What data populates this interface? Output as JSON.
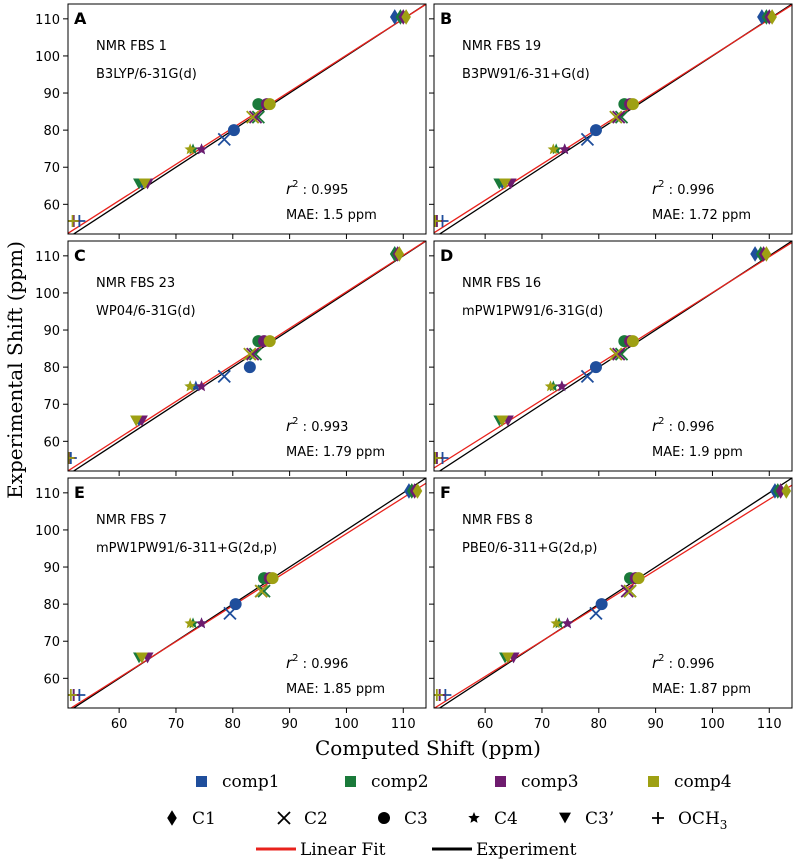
{
  "chart_data": {
    "type": "scatter",
    "xlabel": "Computed Shift (ppm)",
    "ylabel": "Experimental Shift (ppm)",
    "xlim": [
      51,
      114
    ],
    "ylim": [
      52,
      114
    ],
    "xticks": [
      60,
      70,
      80,
      90,
      100,
      110
    ],
    "yticks": [
      60,
      70,
      80,
      90,
      100,
      110
    ],
    "r2_label": "r",
    "mae_label": "MAE:",
    "unit": "ppm",
    "colors": {
      "comp1": "#1f4e9c",
      "comp2": "#1a7a3a",
      "comp3": "#6e1b6e",
      "comp4": "#9ea013",
      "fit": "#e8221c",
      "experiment": "#000000",
      "r2": "#e8221c",
      "mae": "#1f1fd0"
    },
    "panels": [
      {
        "letter": "A",
        "method": "NMR FBS 1",
        "basis": "B3LYP/6-31G(d)",
        "r2": "0.995",
        "mae": "1.5",
        "fit": {
          "slope": 0.98,
          "intercept": 2.2
        },
        "shifts": [
          {
            "comp": "comp1",
            "C1": 108.5,
            "C2": 78.5,
            "C3": 80.2,
            "C4": 74.5,
            "C3p": 64.0,
            "OCH3": 53.0
          },
          {
            "comp": "comp2",
            "C1": 109.5,
            "C2": 84.5,
            "C3": 84.5,
            "C4": 73.0,
            "C3p": 63.5,
            "OCH3": 52.0
          },
          {
            "comp": "comp3",
            "C1": 110.0,
            "C2": 84.0,
            "C3": 86.0,
            "C4": 74.5,
            "C3p": 65.0,
            "OCH3": 52.0
          },
          {
            "comp": "comp4",
            "C1": 110.5,
            "C2": 83.5,
            "C3": 86.5,
            "C4": 72.5,
            "C3p": 64.5,
            "OCH3": 51.8
          }
        ]
      },
      {
        "letter": "B",
        "method": "NMR FBS 19",
        "basis": "B3PW91/6-31+G(d)",
        "r2": "0.996",
        "mae": "1.72",
        "fit": {
          "slope": 0.975,
          "intercept": 2.6
        },
        "shifts": [
          {
            "comp": "comp1",
            "C1": 108.7,
            "C2": 78.0,
            "C3": 79.5,
            "C4": 74.0,
            "C3p": 63.0,
            "OCH3": 52.5
          },
          {
            "comp": "comp2",
            "C1": 109.5,
            "C2": 84.0,
            "C3": 84.5,
            "C4": 72.5,
            "C3p": 62.5,
            "OCH3": 51.5
          },
          {
            "comp": "comp3",
            "C1": 110.0,
            "C2": 83.5,
            "C3": 85.5,
            "C4": 74.0,
            "C3p": 64.5,
            "OCH3": 51.5
          },
          {
            "comp": "comp4",
            "C1": 110.5,
            "C2": 83.0,
            "C3": 86.0,
            "C4": 72.0,
            "C3p": 63.5,
            "OCH3": 51.2
          }
        ]
      },
      {
        "letter": "C",
        "method": "NMR FBS 23",
        "basis": "WP04/6-31G(d)",
        "r2": "0.993",
        "mae": "1.79",
        "fit": {
          "slope": 0.985,
          "intercept": 1.8
        },
        "shifts": [
          {
            "comp": "comp1",
            "C1": 108.5,
            "C2": 78.5,
            "C3": 83.0,
            "C4": 73.5,
            "C3p": 63.5,
            "OCH3": 51.5
          },
          {
            "comp": "comp2",
            "C1": 108.5,
            "C2": 84.0,
            "C3": 84.5,
            "C4": 72.5,
            "C3p": 63.0,
            "OCH3": 51.2
          },
          {
            "comp": "comp3",
            "C1": 109.0,
            "C2": 83.5,
            "C3": 85.5,
            "C4": 74.5,
            "C3p": 64.0,
            "OCH3": 51.2
          },
          {
            "comp": "comp4",
            "C1": 109.3,
            "C2": 83.0,
            "C3": 86.5,
            "C4": 72.5,
            "C3p": 63.0,
            "OCH3": 51.1
          }
        ]
      },
      {
        "letter": "D",
        "method": "NMR FBS 16",
        "basis": "mPW1PW91/6-31G(d)",
        "r2": "0.996",
        "mae": "1.9",
        "fit": {
          "slope": 0.965,
          "intercept": 3.6
        },
        "shifts": [
          {
            "comp": "comp1",
            "C1": 107.5,
            "C2": 78.0,
            "C3": 79.5,
            "C4": 73.5,
            "C3p": 63.0,
            "OCH3": 52.5
          },
          {
            "comp": "comp2",
            "C1": 108.5,
            "C2": 84.0,
            "C3": 84.5,
            "C4": 72.0,
            "C3p": 62.5,
            "OCH3": 51.5
          },
          {
            "comp": "comp3",
            "C1": 109.0,
            "C2": 83.5,
            "C3": 85.5,
            "C4": 73.5,
            "C3p": 64.0,
            "OCH3": 51.5
          },
          {
            "comp": "comp4",
            "C1": 109.5,
            "C2": 83.0,
            "C3": 86.0,
            "C4": 71.5,
            "C3p": 63.0,
            "OCH3": 51.2
          }
        ]
      },
      {
        "letter": "E",
        "method": "NMR FBS 7",
        "basis": "mPW1PW91/6-311+G(2d,p)",
        "r2": "0.996",
        "mae": "1.85",
        "fit": {
          "slope": 0.97,
          "intercept": 2.0
        },
        "shifts": [
          {
            "comp": "comp1",
            "C1": 111.0,
            "C2": 79.5,
            "C3": 80.5,
            "C4": 74.5,
            "C3p": 64.0,
            "OCH3": 53.0
          },
          {
            "comp": "comp2",
            "C1": 111.5,
            "C2": 85.5,
            "C3": 85.5,
            "C4": 73.0,
            "C3p": 63.5,
            "OCH3": 52.0
          },
          {
            "comp": "comp3",
            "C1": 112.0,
            "C2": 85.0,
            "C3": 86.5,
            "C4": 74.5,
            "C3p": 65.0,
            "OCH3": 52.0
          },
          {
            "comp": "comp4",
            "C1": 112.5,
            "C2": 85.0,
            "C3": 87.0,
            "C4": 72.5,
            "C3p": 64.0,
            "OCH3": 51.5
          }
        ]
      },
      {
        "letter": "F",
        "method": "NMR FBS 8",
        "basis": "PBE0/6-311+G(2d,p)",
        "r2": "0.996",
        "mae": "1.87",
        "fit": {
          "slope": 0.955,
          "intercept": 3.2
        },
        "shifts": [
          {
            "comp": "comp1",
            "C1": 111.0,
            "C2": 79.5,
            "C3": 80.5,
            "C4": 74.5,
            "C3p": 64.0,
            "OCH3": 53.0
          },
          {
            "comp": "comp2",
            "C1": 111.5,
            "C2": 85.5,
            "C3": 85.5,
            "C4": 73.0,
            "C3p": 63.5,
            "OCH3": 52.0
          },
          {
            "comp": "comp3",
            "C1": 112.0,
            "C2": 85.0,
            "C3": 86.5,
            "C4": 74.5,
            "C3p": 65.0,
            "OCH3": 52.0
          },
          {
            "comp": "comp4",
            "C1": 113.0,
            "C2": 85.5,
            "C3": 87.0,
            "C4": 72.5,
            "C3p": 64.0,
            "OCH3": 51.5
          }
        ]
      }
    ],
    "experimental": {
      "C1": 110.5,
      "C2": 77.5,
      "C3": 80.0,
      "C4": 74.8,
      "C3p": 65.5,
      "OCH3": 55.5,
      "C2b": 83.5,
      "C3b": 87.0
    },
    "legend": {
      "compounds": [
        {
          "key": "comp1",
          "label": "comp1"
        },
        {
          "key": "comp2",
          "label": "comp2"
        },
        {
          "key": "comp3",
          "label": "comp3"
        },
        {
          "key": "comp4",
          "label": "comp4"
        }
      ],
      "carbons": [
        {
          "key": "C1",
          "label": "C1",
          "marker": "diamond"
        },
        {
          "key": "C2",
          "label": "C2",
          "marker": "x"
        },
        {
          "key": "C3",
          "label": "C3",
          "marker": "circle"
        },
        {
          "key": "C4",
          "label": "C4",
          "marker": "star"
        },
        {
          "key": "C3p",
          "label": "C3’",
          "marker": "triangle-down"
        },
        {
          "key": "OCH3",
          "label": "OCH",
          "sub": "3",
          "marker": "plus"
        }
      ],
      "lines": [
        {
          "key": "fit",
          "label": "Linear Fit"
        },
        {
          "key": "experiment",
          "label": "Experiment"
        }
      ]
    }
  }
}
